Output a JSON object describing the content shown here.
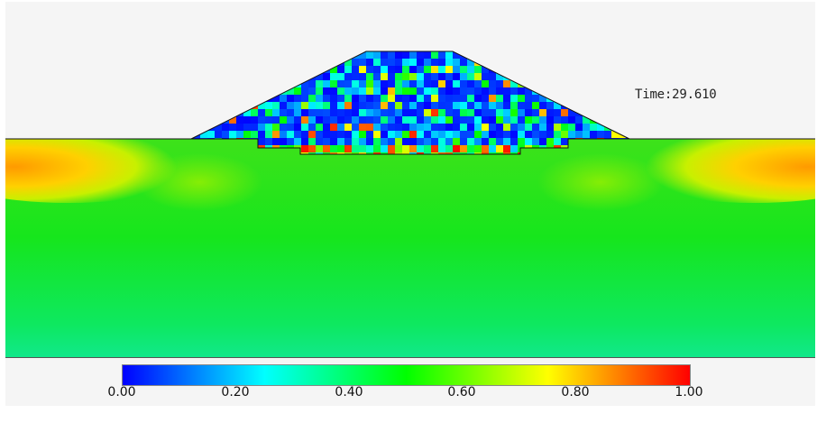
{
  "time": {
    "label": "Time:",
    "value": "29.610"
  },
  "colorbar": {
    "min": 0.0,
    "max": 1.0,
    "ticks": [
      "0.00",
      "0.20",
      "0.40",
      "0.60",
      "0.80",
      "1.00"
    ],
    "stops": [
      "#0000ff",
      "#00ffff",
      "#00ff00",
      "#ffff00",
      "#ff0000"
    ]
  },
  "colors": {
    "background": "#f5f5f5",
    "ground": "#22e000",
    "embankment_core": "#0c1ee6"
  }
}
